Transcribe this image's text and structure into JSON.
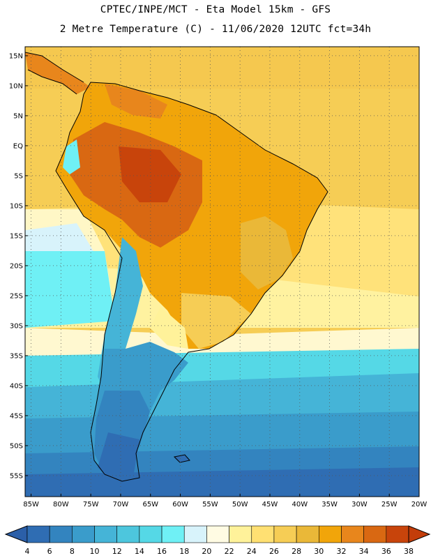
{
  "header": {
    "line1": "CPTEC/INPE/MCT -  Eta Model 15km - GFS",
    "line2": "2 Metre Temperature (C) - 11/06/2020 12UTC fct=34h"
  },
  "map": {
    "lat_labels": [
      "15N",
      "10N",
      "5N",
      "EQ",
      "5S",
      "10S",
      "15S",
      "20S",
      "25S",
      "30S",
      "35S",
      "40S",
      "45S",
      "50S",
      "55S"
    ],
    "lon_labels": [
      "85W",
      "80W",
      "75W",
      "70W",
      "65W",
      "60W",
      "55W",
      "50W",
      "45W",
      "40W",
      "35W",
      "30W",
      "25W",
      "20W"
    ],
    "lat_values": [
      15,
      10,
      5,
      0,
      -5,
      -10,
      -15,
      -20,
      -25,
      -30,
      -35,
      -40,
      -45,
      -50,
      -55
    ],
    "lon_values": [
      -85,
      -80,
      -75,
      -70,
      -65,
      -60,
      -55,
      -50,
      -45,
      -40,
      -35,
      -30,
      -25,
      -20
    ],
    "extent": {
      "lon_min": -86,
      "lon_max": -20,
      "lat_min": -58.5,
      "lat_max": 16.5
    }
  },
  "colorbar": {
    "labels": [
      "4",
      "6",
      "8",
      "10",
      "12",
      "14",
      "16",
      "18",
      "20",
      "22",
      "24",
      "26",
      "28",
      "30",
      "32",
      "34",
      "36",
      "38"
    ],
    "colors": [
      "#2f6db3",
      "#3384bf",
      "#3a9ccb",
      "#45b4d7",
      "#4dc6dd",
      "#55d8e6",
      "#6ff0f5",
      "#d8f3fb",
      "#fffbe3",
      "#fff29a",
      "#ffe072",
      "#f6cd55",
      "#eab838",
      "#f1a50a",
      "#e8861c",
      "#d96812",
      "#c8440b"
    ],
    "low_color": "#2b5fa8",
    "high_color": "#c33d0a"
  }
}
